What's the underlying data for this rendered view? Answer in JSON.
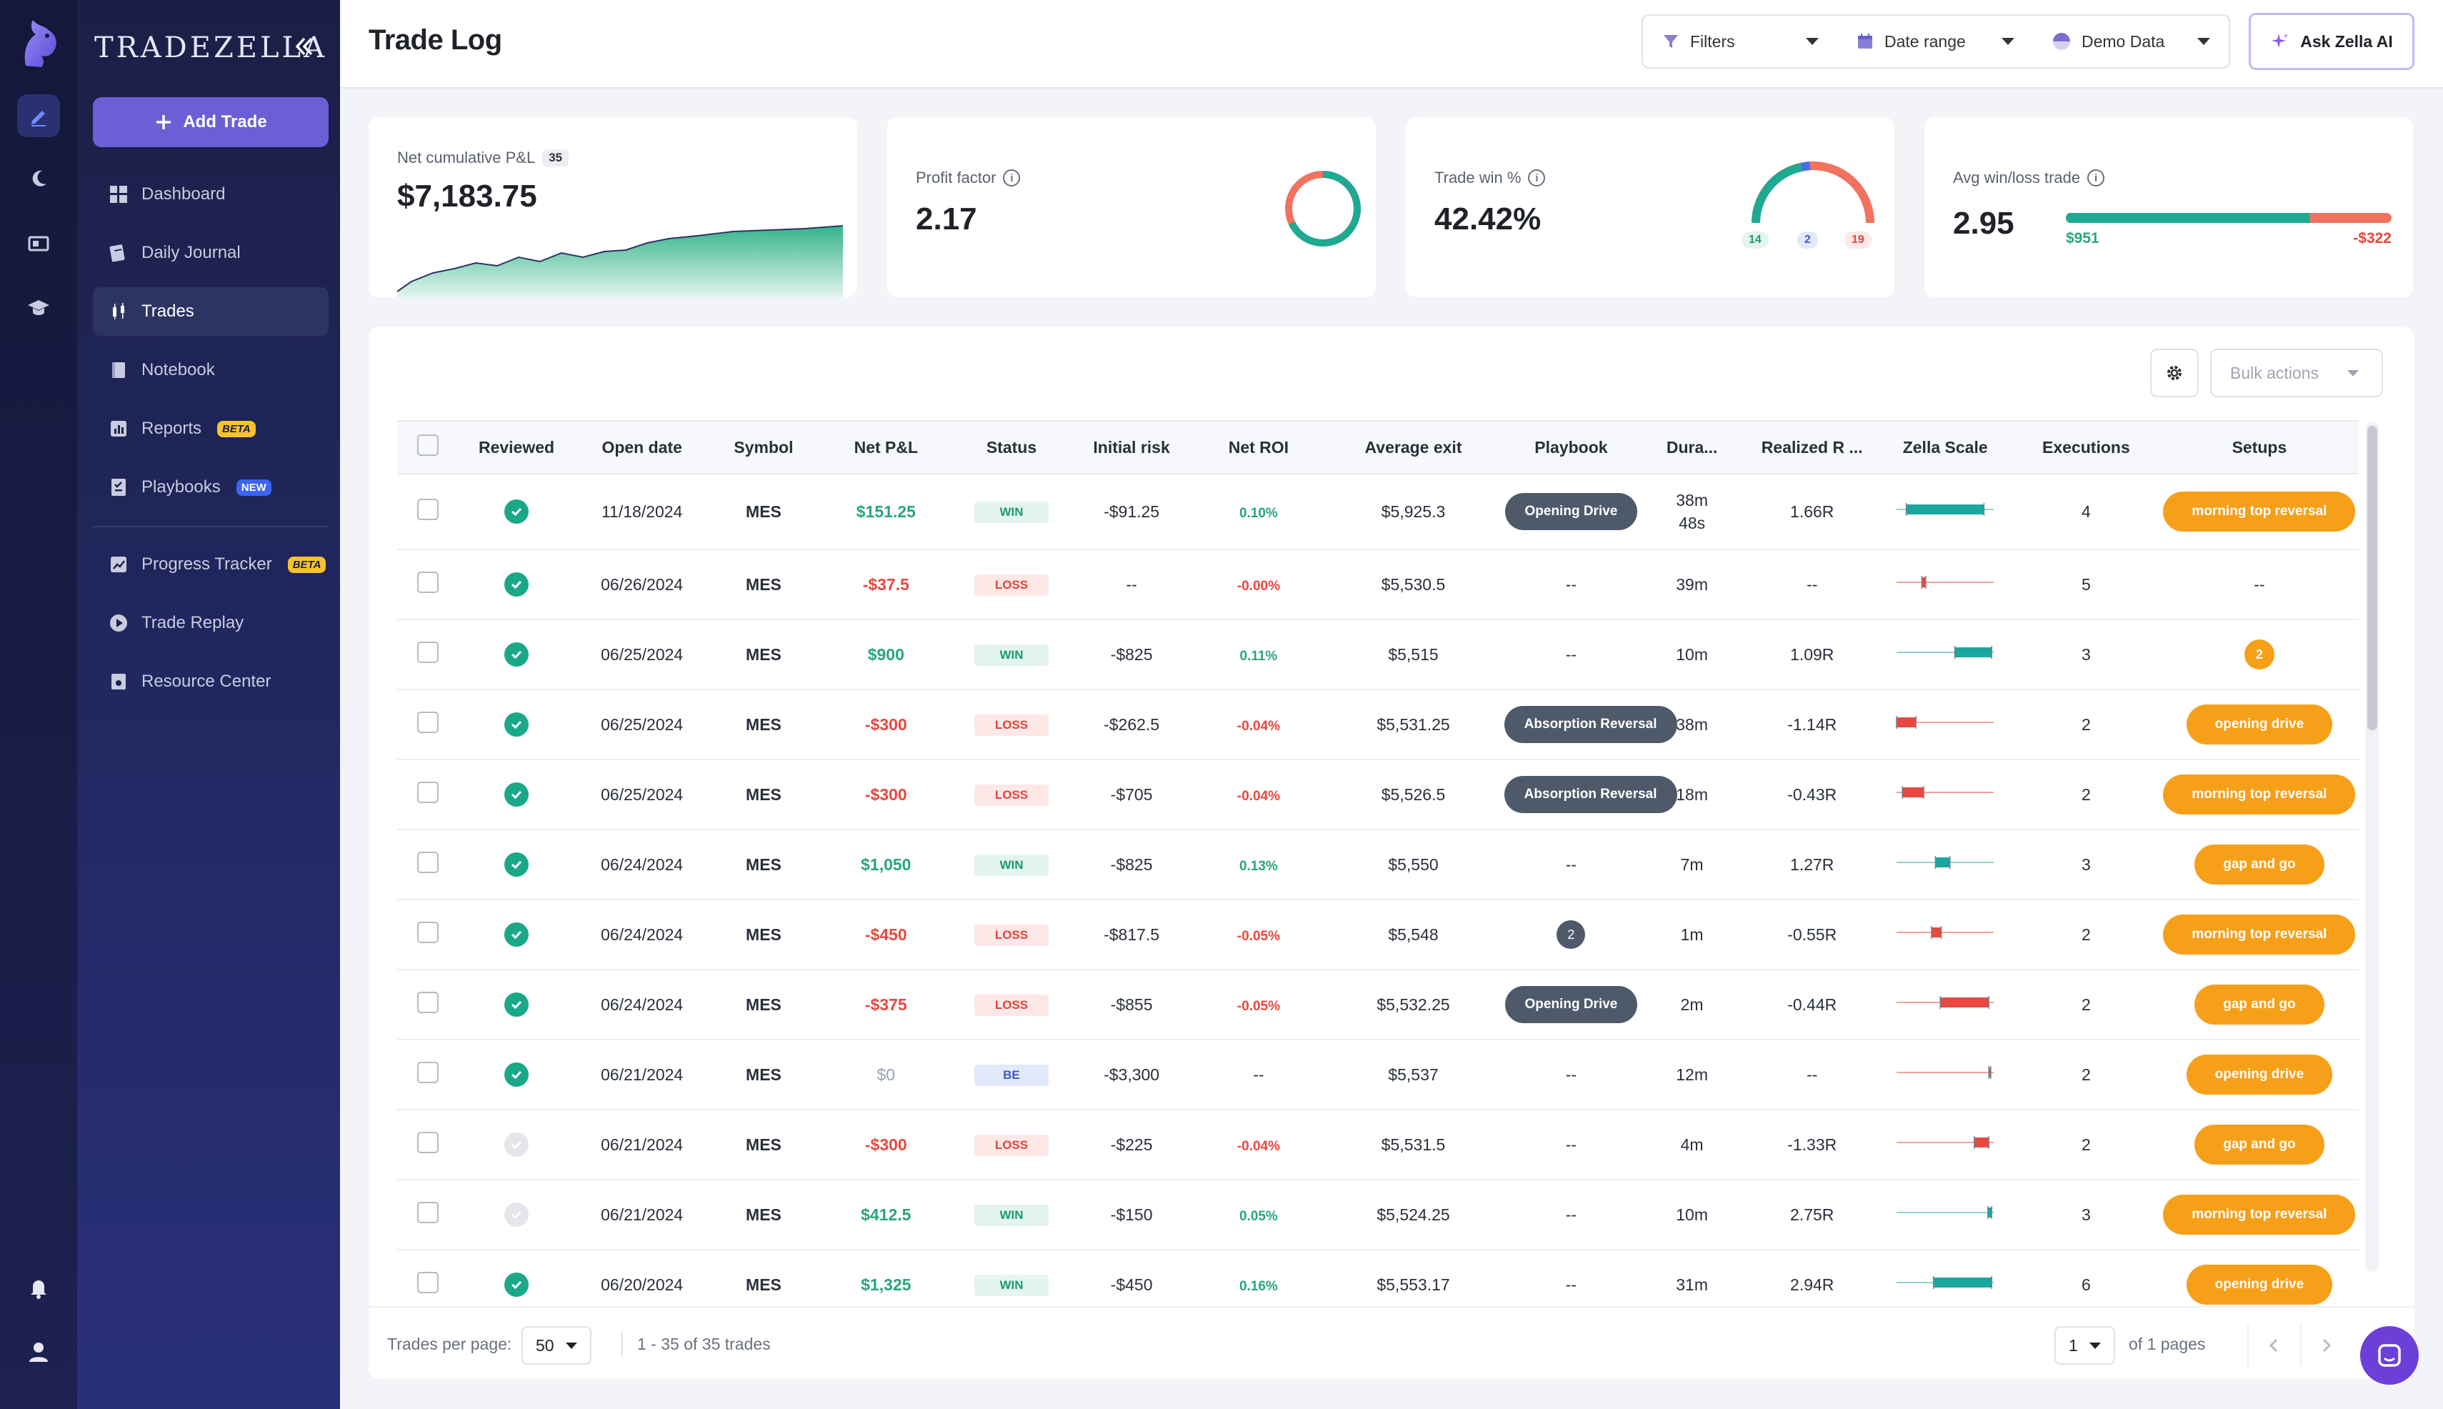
{
  "app": {
    "brand": "TRADEZELLA",
    "page_title": "Trade Log"
  },
  "sidebar": {
    "add_trade": "Add Trade",
    "items": [
      {
        "label": "Dashboard",
        "icon": "dashboard-icon"
      },
      {
        "label": "Daily Journal",
        "icon": "journal-icon"
      },
      {
        "label": "Trades",
        "icon": "trades-icon",
        "active": true
      },
      {
        "label": "Notebook",
        "icon": "notebook-icon"
      },
      {
        "label": "Reports",
        "icon": "reports-icon",
        "badge": "BETA"
      },
      {
        "label": "Playbooks",
        "icon": "playbooks-icon",
        "badge": "NEW"
      },
      {
        "label": "Progress Tracker",
        "icon": "progress-icon",
        "badge": "BETA"
      },
      {
        "label": "Trade Replay",
        "icon": "replay-icon"
      },
      {
        "label": "Resource Center",
        "icon": "resource-icon"
      }
    ]
  },
  "toolbar": {
    "filters": "Filters",
    "date_range": "Date range",
    "demo_data": "Demo Data",
    "ask_ai": "Ask Zella AI"
  },
  "stats": {
    "net_pnl": {
      "label": "Net cumulative P&L",
      "count": "35",
      "value": "$7,183.75"
    },
    "profit_factor": {
      "label": "Profit factor",
      "value": "2.17",
      "ratio": 0.68
    },
    "trade_win": {
      "label": "Trade win %",
      "value": "42.42%",
      "wins": "14",
      "be": "2",
      "losses": "19"
    },
    "avg_win_loss": {
      "label": "Avg win/loss trade",
      "value": "2.95",
      "avg_win": "$951",
      "avg_loss": "-$322",
      "win_share": 0.75
    }
  },
  "actions": {
    "bulk": "Bulk actions"
  },
  "table": {
    "columns": [
      "Reviewed",
      "Open date",
      "Symbol",
      "Net P&L",
      "Status",
      "Initial risk",
      "Net ROI",
      "Average exit",
      "Playbook",
      "Dura...",
      "Realized R ...",
      "Zella Scale",
      "Executions",
      "Setups"
    ],
    "rows": [
      {
        "reviewed": true,
        "date": "11/18/2024",
        "symbol": "MES",
        "pnl": "$151.25",
        "pnl_sign": "pos",
        "status": "WIN",
        "risk": "-$91.25",
        "roi": "0.10%",
        "roi_sign": "pos",
        "exit": "$5,925.3",
        "playbook": "Opening Drive",
        "duration": "38m 48s",
        "r": "1.66R",
        "execs": "4",
        "setup": "morning top reversal",
        "scale": {
          "from": 0.1,
          "to": 0.9,
          "color": "#1aa7a0"
        }
      },
      {
        "reviewed": true,
        "date": "06/26/2024",
        "symbol": "MES",
        "pnl": "-$37.5",
        "pnl_sign": "neg",
        "status": "LOSS",
        "risk": "--",
        "roi": "-0.00%",
        "roi_sign": "neg",
        "exit": "$5,530.5",
        "playbook": "--",
        "duration": "39m",
        "r": "--",
        "execs": "5",
        "setup": "--",
        "scale": {
          "from": 0.26,
          "to": 0.3,
          "color": "#e8483f"
        }
      },
      {
        "reviewed": true,
        "date": "06/25/2024",
        "symbol": "MES",
        "pnl": "$900",
        "pnl_sign": "pos",
        "status": "WIN",
        "risk": "-$825",
        "roi": "0.11%",
        "roi_sign": "pos",
        "exit": "$5,515",
        "playbook": "--",
        "duration": "10m",
        "r": "1.09R",
        "execs": "3",
        "setup_num": "2",
        "scale": {
          "from": 0.6,
          "to": 0.98,
          "color": "#1aa7a0"
        }
      },
      {
        "reviewed": true,
        "date": "06/25/2024",
        "symbol": "MES",
        "pnl": "-$300",
        "pnl_sign": "neg",
        "status": "LOSS",
        "risk": "-$262.5",
        "roi": "-0.04%",
        "roi_sign": "neg",
        "exit": "$5,531.25",
        "playbook": "Absorption Reversal",
        "duration": "38m",
        "r": "-1.14R",
        "execs": "2",
        "setup": "opening drive",
        "scale": {
          "from": 0.0,
          "to": 0.2,
          "color": "#e8483f"
        }
      },
      {
        "reviewed": true,
        "date": "06/25/2024",
        "symbol": "MES",
        "pnl": "-$300",
        "pnl_sign": "neg",
        "status": "LOSS",
        "risk": "-$705",
        "roi": "-0.04%",
        "roi_sign": "neg",
        "exit": "$5,526.5",
        "playbook": "Absorption Reversal",
        "duration": "18m",
        "r": "-0.43R",
        "execs": "2",
        "setup": "morning top reversal",
        "scale": {
          "from": 0.06,
          "to": 0.28,
          "color": "#e8483f"
        }
      },
      {
        "reviewed": true,
        "date": "06/24/2024",
        "symbol": "MES",
        "pnl": "$1,050",
        "pnl_sign": "pos",
        "status": "WIN",
        "risk": "-$825",
        "roi": "0.13%",
        "roi_sign": "pos",
        "exit": "$5,550",
        "playbook": "--",
        "duration": "7m",
        "r": "1.27R",
        "execs": "3",
        "setup": "gap and go",
        "scale": {
          "from": 0.4,
          "to": 0.55,
          "color": "#1aa7a0"
        }
      },
      {
        "reviewed": true,
        "date": "06/24/2024",
        "symbol": "MES",
        "pnl": "-$450",
        "pnl_sign": "neg",
        "status": "LOSS",
        "risk": "-$817.5",
        "roi": "-0.05%",
        "roi_sign": "neg",
        "exit": "$5,548",
        "playbook_num": "2",
        "duration": "1m",
        "r": "-0.55R",
        "execs": "2",
        "setup": "morning top reversal",
        "scale": {
          "from": 0.36,
          "to": 0.46,
          "color": "#e8483f"
        }
      },
      {
        "reviewed": true,
        "date": "06/24/2024",
        "symbol": "MES",
        "pnl": "-$375",
        "pnl_sign": "neg",
        "status": "LOSS",
        "risk": "-$855",
        "roi": "-0.05%",
        "roi_sign": "neg",
        "exit": "$5,532.25",
        "playbook": "Opening Drive",
        "duration": "2m",
        "r": "-0.44R",
        "execs": "2",
        "setup": "gap and go",
        "scale": {
          "from": 0.45,
          "to": 0.95,
          "color": "#e8483f"
        }
      },
      {
        "reviewed": true,
        "date": "06/21/2024",
        "symbol": "MES",
        "pnl": "$0",
        "pnl_sign": "zero",
        "status": "BE",
        "risk": "-$3,300",
        "roi": "--",
        "roi_sign": "none",
        "exit": "$5,537",
        "playbook": "--",
        "duration": "12m",
        "r": "--",
        "execs": "2",
        "setup": "opening drive",
        "scale": {
          "from": 0.95,
          "to": 0.97,
          "color": "#e8483f"
        }
      },
      {
        "reviewed": false,
        "date": "06/21/2024",
        "symbol": "MES",
        "pnl": "-$300",
        "pnl_sign": "neg",
        "status": "LOSS",
        "risk": "-$225",
        "roi": "-0.04%",
        "roi_sign": "neg",
        "exit": "$5,531.5",
        "playbook": "--",
        "duration": "4m",
        "r": "-1.33R",
        "execs": "2",
        "setup": "gap and go",
        "scale": {
          "from": 0.8,
          "to": 0.95,
          "color": "#e8483f"
        }
      },
      {
        "reviewed": false,
        "date": "06/21/2024",
        "symbol": "MES",
        "pnl": "$412.5",
        "pnl_sign": "pos",
        "status": "WIN",
        "risk": "-$150",
        "roi": "0.05%",
        "roi_sign": "pos",
        "exit": "$5,524.25",
        "playbook": "--",
        "duration": "10m",
        "r": "2.75R",
        "execs": "3",
        "setup": "morning top reversal",
        "scale": {
          "from": 0.94,
          "to": 0.98,
          "color": "#1aa7a0"
        }
      },
      {
        "reviewed": true,
        "date": "06/20/2024",
        "symbol": "MES",
        "pnl": "$1,325",
        "pnl_sign": "pos",
        "status": "WIN",
        "risk": "-$450",
        "roi": "0.16%",
        "roi_sign": "pos",
        "exit": "$5,553.17",
        "playbook": "--",
        "duration": "31m",
        "r": "2.94R",
        "execs": "6",
        "setup": "opening drive",
        "scale": {
          "from": 0.38,
          "to": 0.98,
          "color": "#1aa7a0"
        }
      }
    ]
  },
  "footer": {
    "per_page_label": "Trades per page:",
    "per_page": "50",
    "range": "1 - 35 of 35 trades",
    "page": "1",
    "of_pages": "of 1 pages"
  }
}
